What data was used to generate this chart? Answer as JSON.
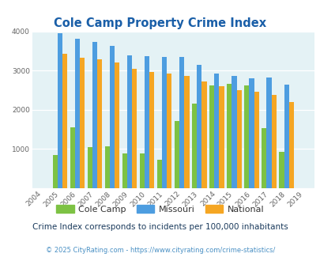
{
  "title": "Cole Camp Property Crime Index",
  "years": [
    2004,
    2005,
    2006,
    2007,
    2008,
    2009,
    2010,
    2011,
    2012,
    2013,
    2014,
    2015,
    2016,
    2017,
    2018,
    2019
  ],
  "cole_camp": [
    0,
    850,
    1550,
    1050,
    1070,
    880,
    880,
    720,
    1700,
    2150,
    2620,
    2650,
    2620,
    1520,
    930,
    0
  ],
  "missouri": [
    0,
    3950,
    3820,
    3720,
    3630,
    3390,
    3360,
    3340,
    3340,
    3140,
    2920,
    2860,
    2810,
    2830,
    2640,
    0
  ],
  "national": [
    0,
    3420,
    3330,
    3280,
    3200,
    3040,
    2970,
    2920,
    2870,
    2720,
    2600,
    2500,
    2450,
    2370,
    2190,
    0
  ],
  "cole_color": "#7dc244",
  "missouri_color": "#4d9de0",
  "national_color": "#f5a623",
  "bg_color": "#e4f2f5",
  "ylim": [
    0,
    4000
  ],
  "yticks": [
    0,
    1000,
    2000,
    3000,
    4000
  ],
  "title_color": "#1a5fa8",
  "subtitle": "Crime Index corresponds to incidents per 100,000 inhabitants",
  "footer": "© 2025 CityRating.com - https://www.cityrating.com/crime-statistics/",
  "subtitle_color": "#1a3a5c",
  "footer_color": "#4a90c4"
}
